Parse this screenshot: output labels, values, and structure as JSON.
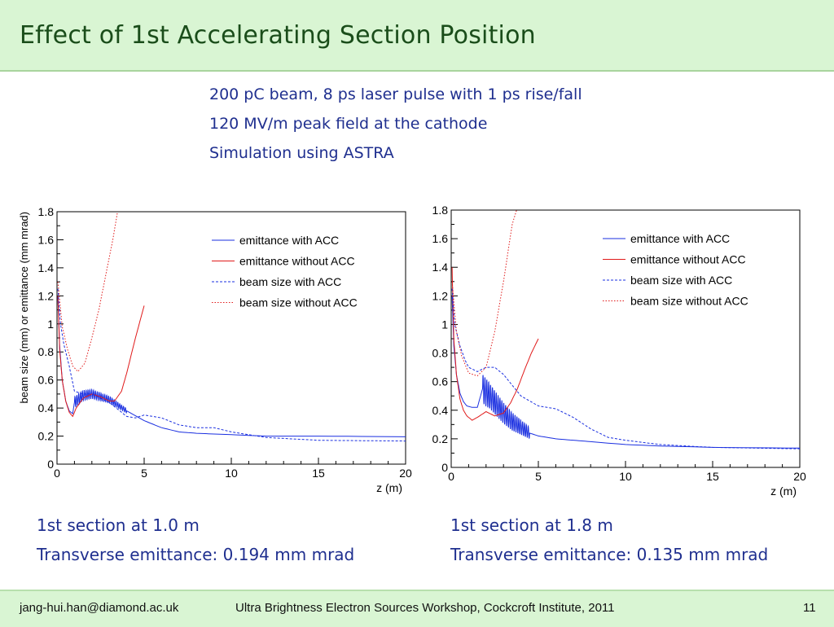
{
  "slide": {
    "title": "Effect of 1st Accelerating Section Position",
    "info_lines": [
      "200 pC beam, 8 ps laser pulse with 1 ps rise/fall",
      "120 MV/m peak field at the cathode",
      "Simulation using ASTRA"
    ],
    "captions": {
      "left_section": "1st section at 1.0 m",
      "left_emittance": "Transverse emittance: 0.194 mm mrad",
      "right_section": "1st section at 1.8 m",
      "right_emittance": "Transverse emittance: 0.135 mm mrad"
    }
  },
  "footer": {
    "email": "jang-hui.han@diamond.ac.uk",
    "event": "Ultra Brightness Electron Sources Workshop, Cockcroft Institute, 2011",
    "page_number": "11"
  },
  "colors": {
    "blue": "#1a2fe0",
    "red": "#e01a1a"
  },
  "chart_data": [
    {
      "type": "line",
      "xlabel": "z (m)",
      "ylabel": "beam size (mm) or emittance (mm mrad)",
      "xlim": [
        0,
        20
      ],
      "ylim": [
        0,
        1.8
      ],
      "xticks": [
        0,
        5,
        10,
        15,
        20
      ],
      "yticks": [
        0,
        0.2,
        0.4,
        0.6,
        0.8,
        1,
        1.2,
        1.4,
        1.6,
        1.8
      ],
      "legend_position": "top-right",
      "series": [
        {
          "name": "emittance with ACC",
          "style": "solid",
          "color": "#1a2fe0",
          "x": [
            0.05,
            0.15,
            0.3,
            0.5,
            0.7,
            0.9,
            1.0,
            1.5,
            2.0,
            2.5,
            3.0,
            3.5,
            4.0,
            5.0,
            6.0,
            7.0,
            8.0,
            10.0,
            12.0,
            15.0,
            20.0
          ],
          "y": [
            1.2,
            0.85,
            0.6,
            0.45,
            0.38,
            0.36,
            0.44,
            0.49,
            0.5,
            0.48,
            0.46,
            0.42,
            0.38,
            0.31,
            0.26,
            0.23,
            0.22,
            0.21,
            0.2,
            0.2,
            0.195
          ],
          "oscillation": {
            "x_start": 1.0,
            "x_end": 4.0,
            "amplitude": 0.04,
            "cycles": 28
          }
        },
        {
          "name": "emittance without ACC",
          "style": "solid",
          "color": "#e01a1a",
          "x": [
            0.05,
            0.15,
            0.3,
            0.5,
            0.7,
            0.9,
            1.1,
            1.5,
            2.0,
            2.5,
            3.0,
            3.3,
            3.7,
            4.0,
            4.5,
            5.0
          ],
          "y": [
            1.2,
            0.82,
            0.6,
            0.45,
            0.37,
            0.34,
            0.4,
            0.47,
            0.5,
            0.48,
            0.45,
            0.45,
            0.52,
            0.65,
            0.9,
            1.13
          ]
        },
        {
          "name": "beam size with ACC",
          "style": "dashed",
          "color": "#1a2fe0",
          "x": [
            0.05,
            0.2,
            0.4,
            0.7,
            1.0,
            1.5,
            2.0,
            3.0,
            4.0,
            4.5,
            5.0,
            6.0,
            7.0,
            8.0,
            9.0,
            10.0,
            12.0,
            15.0,
            20.0
          ],
          "y": [
            1.25,
            1.0,
            0.85,
            0.7,
            0.52,
            0.5,
            0.5,
            0.44,
            0.34,
            0.33,
            0.35,
            0.33,
            0.28,
            0.26,
            0.26,
            0.23,
            0.19,
            0.17,
            0.165
          ]
        },
        {
          "name": "beam size without ACC",
          "style": "dotted",
          "color": "#e01a1a",
          "x": [
            0.05,
            0.3,
            0.6,
            0.9,
            1.2,
            1.6,
            2.0,
            2.4,
            2.8,
            3.2,
            3.5
          ],
          "y": [
            1.3,
            0.98,
            0.82,
            0.7,
            0.66,
            0.72,
            0.9,
            1.1,
            1.35,
            1.6,
            1.82
          ]
        }
      ]
    },
    {
      "type": "line",
      "xlabel": "z (m)",
      "ylabel": "",
      "xlim": [
        0,
        20
      ],
      "ylim": [
        0,
        1.8
      ],
      "xticks": [
        0,
        5,
        10,
        15,
        20
      ],
      "yticks": [
        0,
        0.2,
        0.4,
        0.6,
        0.8,
        1,
        1.2,
        1.4,
        1.6,
        1.8
      ],
      "legend_position": "top-right",
      "series": [
        {
          "name": "emittance with ACC",
          "style": "solid",
          "color": "#1a2fe0",
          "x": [
            0.05,
            0.15,
            0.3,
            0.5,
            0.7,
            0.9,
            1.2,
            1.5,
            1.8,
            2.2,
            3.0,
            3.5,
            4.0,
            4.5,
            5.0,
            6.0,
            7.0,
            8.0,
            10.0,
            12.0,
            15.0,
            20.0
          ],
          "y": [
            1.2,
            0.85,
            0.65,
            0.52,
            0.46,
            0.43,
            0.42,
            0.42,
            0.55,
            0.5,
            0.38,
            0.32,
            0.28,
            0.24,
            0.22,
            0.2,
            0.19,
            0.18,
            0.16,
            0.15,
            0.14,
            0.135
          ],
          "oscillation": {
            "x_start": 1.8,
            "x_end": 4.5,
            "amplitude": 0.1,
            "cycles": 25
          }
        },
        {
          "name": "emittance without ACC",
          "style": "solid",
          "color": "#e01a1a",
          "x": [
            0.05,
            0.15,
            0.3,
            0.5,
            0.7,
            0.9,
            1.2,
            1.5,
            2.0,
            2.5,
            3.0,
            3.4,
            3.8,
            4.2,
            4.6,
            5.0
          ],
          "y": [
            1.4,
            0.9,
            0.65,
            0.48,
            0.4,
            0.36,
            0.33,
            0.35,
            0.39,
            0.36,
            0.38,
            0.45,
            0.55,
            0.68,
            0.8,
            0.9
          ]
        },
        {
          "name": "beam size with ACC",
          "style": "dashed",
          "color": "#1a2fe0",
          "x": [
            0.05,
            0.2,
            0.5,
            0.8,
            1.0,
            1.5,
            2.0,
            2.5,
            3.0,
            4.0,
            5.0,
            6.0,
            7.0,
            8.0,
            9.0,
            10.0,
            12.0,
            15.0,
            20.0
          ],
          "y": [
            1.25,
            1.0,
            0.85,
            0.75,
            0.7,
            0.67,
            0.7,
            0.7,
            0.65,
            0.5,
            0.43,
            0.41,
            0.35,
            0.27,
            0.21,
            0.19,
            0.16,
            0.14,
            0.13
          ]
        },
        {
          "name": "beam size without ACC",
          "style": "dotted",
          "color": "#e01a1a",
          "x": [
            0.05,
            0.3,
            0.6,
            1.0,
            1.5,
            2.0,
            2.5,
            3.0,
            3.5,
            3.8
          ],
          "y": [
            1.3,
            0.95,
            0.78,
            0.66,
            0.64,
            0.7,
            0.95,
            1.3,
            1.7,
            1.82
          ]
        }
      ]
    }
  ]
}
